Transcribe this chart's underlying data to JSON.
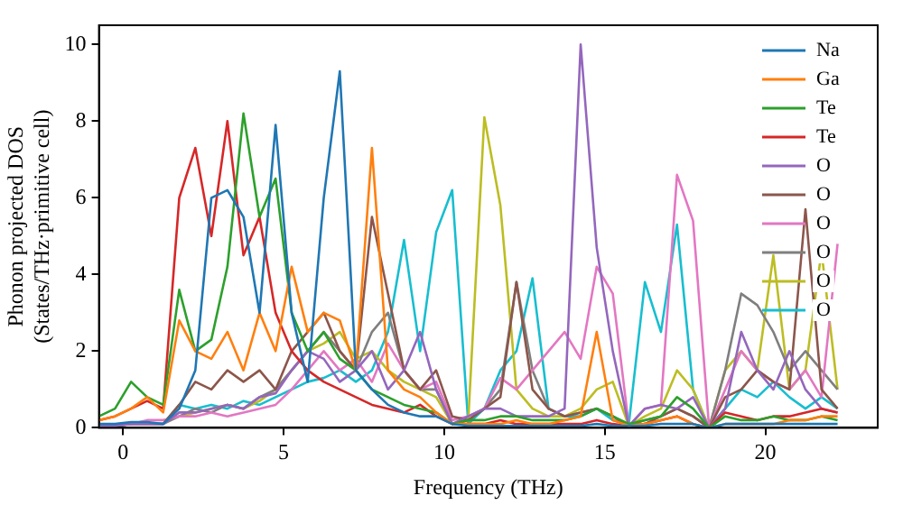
{
  "chart_data": {
    "type": "line",
    "xlabel": "Frequency (THz)",
    "ylabel": "Phonon projected DOS\n(States/THz·primitive cell)",
    "xlim": [
      -0.75,
      23.5
    ],
    "ylim": [
      0,
      10.5
    ],
    "xticks": [
      0,
      5,
      10,
      15,
      20
    ],
    "yticks": [
      0,
      2,
      4,
      6,
      8,
      10
    ],
    "grid": false,
    "legend": "top right",
    "marker": "none",
    "line_style": "solid",
    "x": [
      -0.75,
      -0.25,
      0.25,
      0.75,
      1.25,
      1.75,
      2.25,
      2.75,
      3.25,
      3.75,
      4.25,
      4.75,
      5.25,
      5.75,
      6.25,
      6.75,
      7.25,
      7.75,
      8.25,
      8.75,
      9.25,
      9.75,
      10.25,
      10.75,
      11.25,
      11.75,
      12.25,
      12.75,
      13.25,
      13.75,
      14.25,
      14.75,
      15.25,
      15.75,
      16.25,
      16.75,
      17.25,
      17.75,
      18.25,
      18.75,
      19.25,
      19.75,
      20.25,
      20.75,
      21.25,
      21.75,
      22.25
    ],
    "series": [
      {
        "name": "Na",
        "color": "#1f77b4",
        "values": [
          0.1,
          0.1,
          0.15,
          0.15,
          0.1,
          0.5,
          1.5,
          6.0,
          6.2,
          5.5,
          3.0,
          7.9,
          3.0,
          1.2,
          6.0,
          9.3,
          1.5,
          1.0,
          0.6,
          0.4,
          0.3,
          0.3,
          0.1,
          0.05,
          0.05,
          0.05,
          0.05,
          0.05,
          0.05,
          0.05,
          0.05,
          0.1,
          0.05,
          0.05,
          0.05,
          0.1,
          0.1,
          0.1,
          0,
          0.1,
          0.1,
          0.1,
          0.1,
          0.1,
          0.1,
          0.1,
          0.1
        ]
      },
      {
        "name": "Ga",
        "color": "#ff7f0e",
        "values": [
          0.2,
          0.3,
          0.5,
          0.8,
          0.4,
          2.8,
          2.0,
          1.8,
          2.5,
          1.5,
          3.0,
          2.0,
          4.2,
          2.5,
          3.0,
          2.8,
          1.5,
          7.3,
          1.5,
          1.0,
          0.8,
          0.4,
          0.1,
          0.1,
          0.1,
          0.1,
          0.2,
          0.1,
          0.1,
          0.2,
          0.3,
          2.5,
          0.2,
          0.05,
          0.1,
          0.2,
          0.3,
          0.1,
          0,
          0.1,
          0.1,
          0.1,
          0.1,
          0.2,
          0.2,
          0.3,
          0.3
        ]
      },
      {
        "name": "Te",
        "color": "#2ca02c",
        "values": [
          0.3,
          0.5,
          1.2,
          0.8,
          0.6,
          3.6,
          2.0,
          2.3,
          4.2,
          8.2,
          5.5,
          6.5,
          3.0,
          2.0,
          2.5,
          1.8,
          1.5,
          1.0,
          0.8,
          0.6,
          0.5,
          0.4,
          0.1,
          0.2,
          0.2,
          0.3,
          0.3,
          0.2,
          0.2,
          0.2,
          0.3,
          0.5,
          0.3,
          0.1,
          0.2,
          0.3,
          0.8,
          0.5,
          0,
          0.3,
          0.2,
          0.2,
          0.3,
          0.2,
          0.2,
          0.3,
          0.2
        ]
      },
      {
        "name": "Te",
        "color": "#d62728",
        "values": [
          0.2,
          0.3,
          0.5,
          0.7,
          0.5,
          6.0,
          7.3,
          5.0,
          8.0,
          4.5,
          5.5,
          3.0,
          2.0,
          1.5,
          1.2,
          1.0,
          0.8,
          0.6,
          0.5,
          0.4,
          0.6,
          0.3,
          0.1,
          0.1,
          0.1,
          0.2,
          0.1,
          0.1,
          0.1,
          0.1,
          0.1,
          0.2,
          0.1,
          0.05,
          0.1,
          0.2,
          0.3,
          0.1,
          0,
          0.4,
          0.3,
          0.2,
          0.3,
          0.3,
          0.4,
          0.5,
          0.4
        ]
      },
      {
        "name": "O",
        "color": "#9467bd",
        "values": [
          0.05,
          0.05,
          0.1,
          0.1,
          0.1,
          0.4,
          0.4,
          0.5,
          0.6,
          0.5,
          0.8,
          0.9,
          1.5,
          2.0,
          1.8,
          1.2,
          1.5,
          2.0,
          1.0,
          1.5,
          2.5,
          1.0,
          0.1,
          0.3,
          0.5,
          0.5,
          0.3,
          0.3,
          0.3,
          0.5,
          10.0,
          4.7,
          2.0,
          0.05,
          0.5,
          0.6,
          0.5,
          0.8,
          0,
          0.5,
          2.5,
          1.5,
          1.0,
          2.0,
          1.0,
          0.5,
          0.4
        ]
      },
      {
        "name": "O",
        "color": "#8c564b",
        "values": [
          0.05,
          0.05,
          0.1,
          0.1,
          0.1,
          0.6,
          1.2,
          1.0,
          1.5,
          1.2,
          1.5,
          1.0,
          2.0,
          2.5,
          3.0,
          2.0,
          1.5,
          5.5,
          3.5,
          1.5,
          1.0,
          1.5,
          0.3,
          0.2,
          0.5,
          0.8,
          3.8,
          1.0,
          0.5,
          0.3,
          0.4,
          0.5,
          0.3,
          0.05,
          0.1,
          0.3,
          0.5,
          0.3,
          0,
          0.8,
          1.0,
          1.5,
          1.2,
          1.0,
          5.7,
          1.0,
          0.5
        ]
      },
      {
        "name": "O",
        "color": "#e377c2",
        "values": [
          null,
          null,
          0.1,
          0.2,
          0.2,
          0.3,
          0.3,
          0.4,
          0.3,
          0.4,
          0.5,
          0.6,
          1.0,
          1.5,
          2.0,
          1.5,
          1.8,
          1.2,
          2.2,
          1.5,
          1.0,
          1.2,
          0.2,
          0.3,
          0.5,
          1.3,
          1.0,
          1.5,
          2.0,
          2.5,
          1.8,
          4.2,
          3.5,
          0.05,
          0.5,
          0.6,
          6.6,
          5.4,
          0,
          1.0,
          2.0,
          1.5,
          1.2,
          1.0,
          1.5,
          0.8,
          4.8
        ]
      },
      {
        "name": "O",
        "color": "#7f7f7f",
        "values": [
          0.05,
          0.05,
          0.1,
          0.1,
          0.1,
          0.3,
          0.5,
          0.4,
          0.6,
          0.5,
          0.8,
          1.0,
          1.5,
          2.0,
          2.5,
          2.0,
          1.5,
          2.5,
          3.0,
          1.5,
          1.0,
          1.0,
          0.1,
          0.2,
          0.5,
          1.0,
          3.8,
          1.5,
          0.5,
          0.3,
          0.4,
          0.5,
          0.3,
          0.05,
          0.2,
          0.3,
          0.5,
          0.3,
          0,
          1.5,
          3.5,
          3.2,
          2.5,
          1.5,
          2.0,
          1.5,
          1.0
        ]
      },
      {
        "name": "O",
        "color": "#bcbd22",
        "values": [
          null,
          null,
          null,
          null,
          0.2,
          0.3,
          0.4,
          0.5,
          0.6,
          0.5,
          0.7,
          1.0,
          1.5,
          2.0,
          2.2,
          2.5,
          1.8,
          2.0,
          1.5,
          1.2,
          1.0,
          0.8,
          0.1,
          0.2,
          8.1,
          5.8,
          1.0,
          0.5,
          0.3,
          0.3,
          0.5,
          1.0,
          1.2,
          0.05,
          0.3,
          0.5,
          1.5,
          1.0,
          0,
          1.5,
          2.0,
          1.5,
          4.5,
          1.0,
          1.5,
          4.6,
          1.0
        ]
      },
      {
        "name": "O",
        "color": "#17becf",
        "values": [
          null,
          null,
          null,
          null,
          0.1,
          0.6,
          0.5,
          0.6,
          0.5,
          0.7,
          0.6,
          0.8,
          1.0,
          1.2,
          1.3,
          1.5,
          1.2,
          1.5,
          2.5,
          4.9,
          2.0,
          5.1,
          6.2,
          0.1,
          0.5,
          1.5,
          2.0,
          3.9,
          0.5,
          0.3,
          0.3,
          0.5,
          0.2,
          0.1,
          3.8,
          2.5,
          5.3,
          1.0,
          0,
          0.5,
          1.0,
          0.8,
          1.2,
          0.8,
          0.5,
          0.8,
          0.5
        ]
      }
    ]
  }
}
